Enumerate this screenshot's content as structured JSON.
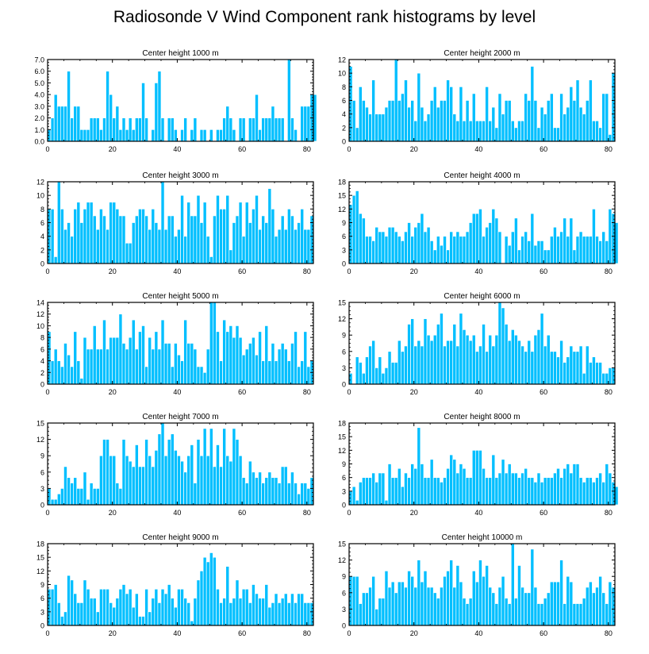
{
  "title": "Radiosonde V Wind Component rank histograms by level",
  "colors": {
    "bar": "#00bfff",
    "bar_edge": "#ffffff",
    "axis": "#000000"
  },
  "chart_data": [
    {
      "type": "bar",
      "title": "Center height 1000 m",
      "xlim": [
        0,
        82
      ],
      "ylim": [
        0,
        7
      ],
      "yticks": [
        0,
        1,
        2,
        3,
        4,
        5,
        6,
        7
      ],
      "ytick_labels": [
        "0.0",
        "1.0",
        "2.0",
        "3.0",
        "4.0",
        "5.0",
        "6.0",
        "7.0"
      ],
      "xticks": [
        0,
        20,
        40,
        60,
        80
      ],
      "xtick_labels": [
        "0",
        "20",
        "40",
        "60",
        "80"
      ],
      "values": [
        1,
        2,
        4,
        3,
        3,
        3,
        6,
        2,
        3,
        3,
        1,
        1,
        1,
        2,
        2,
        2,
        1,
        2,
        6,
        4,
        2,
        3,
        1,
        2,
        1,
        2,
        1,
        2,
        2,
        5,
        2,
        0,
        1,
        5,
        6,
        2,
        0,
        2,
        2,
        1,
        0,
        1,
        2,
        0,
        1,
        2,
        0,
        1,
        1,
        0,
        1,
        0,
        1,
        1,
        2,
        3,
        2,
        1,
        0,
        2,
        2,
        0,
        2,
        2,
        4,
        1,
        2,
        2,
        2,
        3,
        2,
        2,
        2,
        0,
        7,
        2,
        1,
        0,
        3,
        3,
        3,
        4,
        4
      ]
    },
    {
      "type": "bar",
      "title": "Center height 2000 m",
      "xlim": [
        0,
        82
      ],
      "ylim": [
        0,
        12
      ],
      "yticks": [
        0,
        2,
        4,
        6,
        8,
        10,
        12
      ],
      "ytick_labels": [
        "0",
        "2",
        "4",
        "6",
        "8",
        "10",
        "12"
      ],
      "xticks": [
        0,
        20,
        40,
        60,
        80
      ],
      "xtick_labels": [
        "0",
        "20",
        "40",
        "60",
        "80"
      ],
      "values": [
        11,
        6,
        2,
        8,
        6,
        5,
        4,
        9,
        4,
        4,
        4,
        5,
        6,
        6,
        12,
        6,
        7,
        9,
        5,
        6,
        3,
        10,
        5,
        3,
        4,
        6,
        8,
        5,
        6,
        6,
        9,
        8,
        4,
        3,
        8,
        3,
        6,
        3,
        7,
        3,
        3,
        3,
        8,
        3,
        5,
        2,
        7,
        4,
        6,
        6,
        3,
        2,
        3,
        3,
        7,
        6,
        11,
        6,
        2,
        5,
        4,
        6,
        7,
        2,
        2,
        7,
        4,
        5,
        8,
        6,
        9,
        5,
        4,
        6,
        9,
        3,
        3,
        2,
        7,
        7,
        1,
        10
      ]
    },
    {
      "type": "bar",
      "title": "Center height 3000 m",
      "xlim": [
        0,
        82
      ],
      "ylim": [
        0,
        12
      ],
      "yticks": [
        0,
        2,
        4,
        6,
        8,
        10,
        12
      ],
      "ytick_labels": [
        "0",
        "2",
        "4",
        "6",
        "8",
        "10",
        "12"
      ],
      "xticks": [
        0,
        20,
        40,
        60,
        80
      ],
      "xtick_labels": [
        "0",
        "20",
        "40",
        "60",
        "80"
      ],
      "values": [
        8,
        8,
        1,
        12,
        8,
        5,
        6,
        4,
        8,
        9,
        6,
        8,
        9,
        9,
        7,
        5,
        8,
        7,
        5,
        9,
        9,
        8,
        7,
        7,
        3,
        3,
        6,
        7,
        8,
        8,
        7,
        5,
        8,
        6,
        5,
        12,
        5,
        7,
        7,
        4,
        5,
        10,
        4,
        9,
        7,
        7,
        10,
        6,
        9,
        4,
        1,
        7,
        10,
        8,
        8,
        10,
        2,
        6,
        7,
        9,
        4,
        9,
        6,
        8,
        10,
        5,
        7,
        6,
        11,
        8,
        4,
        5,
        7,
        5,
        8,
        7,
        5,
        6,
        8,
        5,
        5,
        7
      ]
    },
    {
      "type": "bar",
      "title": "Center height 4000 m",
      "xlim": [
        0,
        82
      ],
      "ylim": [
        0,
        18
      ],
      "yticks": [
        0,
        3,
        6,
        9,
        12,
        15,
        18
      ],
      "ytick_labels": [
        "0",
        "3",
        "6",
        "9",
        "12",
        "15",
        "18"
      ],
      "xticks": [
        0,
        20,
        40,
        60,
        80
      ],
      "xtick_labels": [
        "0",
        "20",
        "40",
        "60",
        "80"
      ],
      "values": [
        13,
        15,
        16,
        11,
        10,
        6,
        6,
        5,
        8,
        7,
        7,
        6,
        8,
        8,
        7,
        6,
        5,
        7,
        9,
        6,
        8,
        9,
        11,
        7,
        8,
        5,
        3,
        6,
        4,
        6,
        3,
        7,
        6,
        7,
        6,
        6,
        7,
        9,
        11,
        11,
        12,
        6,
        8,
        9,
        12,
        10,
        7,
        0,
        6,
        4,
        7,
        10,
        3,
        6,
        7,
        5,
        11,
        4,
        5,
        5,
        3,
        3,
        6,
        8,
        6,
        7,
        10,
        6,
        10,
        3,
        6,
        7,
        6,
        6,
        6,
        12,
        6,
        5,
        7,
        5,
        12,
        11,
        9
      ]
    },
    {
      "type": "bar",
      "title": "Center height 5000 m",
      "xlim": [
        0,
        82
      ],
      "ylim": [
        0,
        14
      ],
      "yticks": [
        0,
        2,
        4,
        6,
        8,
        10,
        12,
        14
      ],
      "ytick_labels": [
        "0",
        "2",
        "4",
        "6",
        "8",
        "10",
        "12",
        "14"
      ],
      "xticks": [
        0,
        20,
        40,
        60,
        80
      ],
      "xtick_labels": [
        "0",
        "20",
        "40",
        "60",
        "80"
      ],
      "values": [
        9,
        4,
        6,
        4,
        3,
        7,
        5,
        3,
        9,
        4,
        1,
        8,
        6,
        6,
        10,
        6,
        6,
        11,
        6,
        8,
        8,
        8,
        12,
        7,
        6,
        8,
        11,
        6,
        9,
        10,
        3,
        8,
        6,
        9,
        6,
        11,
        7,
        7,
        3,
        7,
        5,
        4,
        11,
        7,
        7,
        6,
        3,
        3,
        2,
        6,
        14,
        14,
        9,
        4,
        11,
        9,
        10,
        8,
        10,
        8,
        5,
        6,
        7,
        8,
        5,
        9,
        4,
        10,
        4,
        7,
        4,
        6,
        7,
        6,
        4,
        7,
        9,
        3,
        4,
        9,
        3,
        4
      ]
    },
    {
      "type": "bar",
      "title": "Center height 6000 m",
      "xlim": [
        0,
        82
      ],
      "ylim": [
        0,
        15
      ],
      "yticks": [
        0,
        3,
        6,
        9,
        12,
        15
      ],
      "ytick_labels": [
        "0",
        "3",
        "6",
        "9",
        "12",
        "15"
      ],
      "xticks": [
        0,
        20,
        40,
        60,
        80
      ],
      "xtick_labels": [
        "0",
        "20",
        "40",
        "60",
        "80"
      ],
      "values": [
        2,
        0,
        5,
        4,
        2,
        5,
        7,
        8,
        3,
        5,
        2,
        3,
        6,
        4,
        4,
        8,
        6,
        7,
        11,
        12,
        7,
        8,
        7,
        12,
        9,
        8,
        9,
        11,
        13,
        7,
        8,
        8,
        11,
        7,
        13,
        10,
        9,
        8,
        9,
        6,
        7,
        11,
        6,
        9,
        7,
        9,
        15,
        14,
        11,
        8,
        10,
        9,
        8,
        7,
        6,
        8,
        6,
        9,
        10,
        13,
        7,
        9,
        6,
        6,
        5,
        8,
        4,
        5,
        7,
        6,
        6,
        7,
        2,
        7,
        4,
        5,
        4,
        4,
        2,
        2,
        3,
        3
      ]
    },
    {
      "type": "bar",
      "title": "Center height 7000 m",
      "xlim": [
        0,
        82
      ],
      "ylim": [
        0,
        15
      ],
      "yticks": [
        0,
        3,
        6,
        9,
        12,
        15
      ],
      "ytick_labels": [
        "0",
        "3",
        "6",
        "9",
        "12",
        "15"
      ],
      "xticks": [
        0,
        20,
        40,
        60,
        80
      ],
      "xtick_labels": [
        "0",
        "20",
        "40",
        "60",
        "80"
      ],
      "values": [
        3,
        1,
        1,
        2,
        3,
        7,
        5,
        4,
        5,
        3,
        3,
        6,
        1,
        4,
        3,
        3,
        9,
        12,
        12,
        9,
        9,
        4,
        3,
        12,
        9,
        8,
        7,
        11,
        7,
        7,
        12,
        9,
        7,
        10,
        13,
        15,
        9,
        12,
        13,
        10,
        9,
        8,
        6,
        9,
        11,
        4,
        12,
        9,
        14,
        9,
        14,
        7,
        11,
        7,
        14,
        9,
        8,
        14,
        12,
        9,
        5,
        4,
        8,
        6,
        5,
        6,
        4,
        5,
        6,
        5,
        5,
        4,
        7,
        7,
        4,
        6,
        4,
        2,
        4,
        4,
        3,
        5
      ]
    },
    {
      "type": "bar",
      "title": "Center height 8000 m",
      "xlim": [
        0,
        82
      ],
      "ylim": [
        0,
        18
      ],
      "yticks": [
        0,
        3,
        6,
        9,
        12,
        15,
        18
      ],
      "ytick_labels": [
        "0",
        "3",
        "6",
        "9",
        "12",
        "15",
        "18"
      ],
      "xticks": [
        0,
        20,
        40,
        60,
        80
      ],
      "xtick_labels": [
        "0",
        "20",
        "40",
        "60",
        "80"
      ],
      "values": [
        3,
        4,
        1,
        5,
        6,
        6,
        6,
        7,
        5,
        7,
        7,
        1,
        9,
        6,
        6,
        8,
        4,
        7,
        6,
        9,
        8,
        17,
        9,
        6,
        6,
        10,
        6,
        6,
        5,
        6,
        8,
        11,
        10,
        7,
        9,
        8,
        6,
        6,
        12,
        12,
        12,
        8,
        6,
        6,
        11,
        6,
        7,
        10,
        7,
        9,
        7,
        7,
        6,
        7,
        8,
        6,
        6,
        5,
        7,
        5,
        6,
        6,
        6,
        7,
        8,
        6,
        8,
        9,
        7,
        9,
        9,
        6,
        5,
        6,
        6,
        5,
        6,
        7,
        5,
        9,
        7,
        5,
        4
      ]
    },
    {
      "type": "bar",
      "title": "Center height 9000 m",
      "xlim": [
        0,
        82
      ],
      "ylim": [
        0,
        18
      ],
      "yticks": [
        0,
        3,
        6,
        9,
        12,
        15,
        18
      ],
      "ytick_labels": [
        "0",
        "3",
        "6",
        "9",
        "12",
        "15",
        "18"
      ],
      "xticks": [
        0,
        20,
        40,
        60,
        80
      ],
      "xtick_labels": [
        "0",
        "20",
        "40",
        "60",
        "80"
      ],
      "values": [
        8,
        8,
        9,
        5,
        2,
        3,
        11,
        10,
        7,
        5,
        5,
        10,
        8,
        6,
        6,
        3,
        8,
        8,
        8,
        5,
        4,
        6,
        8,
        9,
        7,
        8,
        4,
        7,
        2,
        2,
        8,
        3,
        6,
        8,
        5,
        8,
        7,
        9,
        6,
        4,
        8,
        8,
        6,
        5,
        1,
        6,
        10,
        12,
        15,
        14,
        16,
        15,
        8,
        5,
        6,
        13,
        5,
        6,
        10,
        6,
        8,
        8,
        5,
        9,
        7,
        6,
        6,
        9,
        4,
        5,
        7,
        5,
        6,
        7,
        5,
        7,
        5,
        7,
        7,
        5,
        5,
        5
      ]
    },
    {
      "type": "bar",
      "title": "Center height 10000 m",
      "xlim": [
        0,
        82
      ],
      "ylim": [
        0,
        15
      ],
      "yticks": [
        0,
        3,
        6,
        9,
        12,
        15
      ],
      "ytick_labels": [
        "0",
        "3",
        "6",
        "9",
        "12",
        "15"
      ],
      "xticks": [
        0,
        20,
        40,
        60,
        80
      ],
      "xtick_labels": [
        "0",
        "20",
        "40",
        "60",
        "80"
      ],
      "values": [
        9,
        9,
        9,
        4,
        6,
        6,
        7,
        9,
        3,
        5,
        5,
        10,
        7,
        8,
        6,
        8,
        8,
        7,
        10,
        9,
        7,
        12,
        8,
        10,
        7,
        7,
        6,
        5,
        7,
        9,
        10,
        12,
        7,
        11,
        8,
        5,
        4,
        5,
        10,
        8,
        12,
        9,
        11,
        7,
        6,
        4,
        7,
        9,
        5,
        4,
        15,
        5,
        11,
        7,
        6,
        6,
        14,
        7,
        4,
        4,
        5,
        6,
        8,
        8,
        8,
        12,
        4,
        9,
        8,
        4,
        4,
        4,
        5,
        7,
        8,
        6,
        7,
        9,
        6,
        4,
        8,
        7
      ]
    }
  ]
}
